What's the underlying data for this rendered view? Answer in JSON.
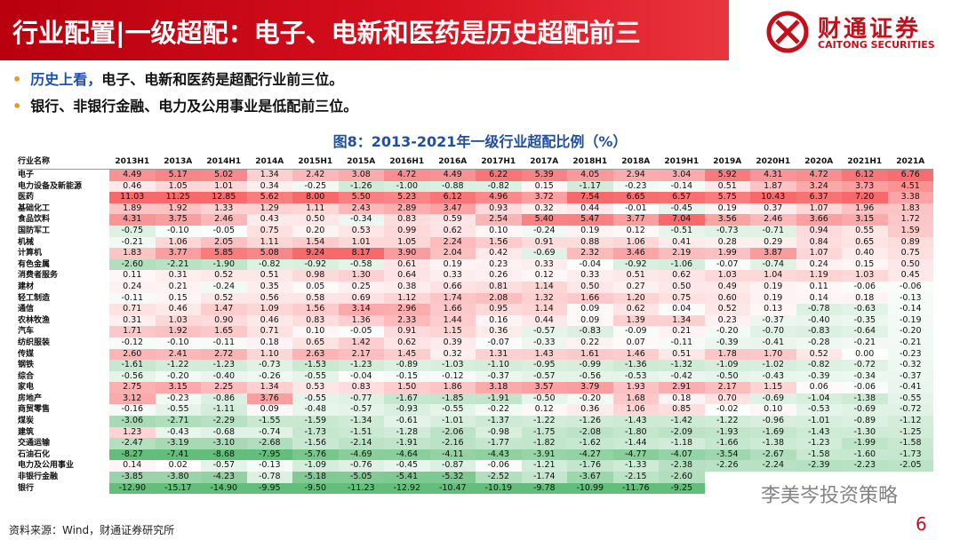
{
  "header": {
    "title": "行业配置|一级超配：电子、电新和医药是历史超配前三",
    "logo": "财通证券",
    "logo_en": "CAITONG SECURITIES"
  },
  "bullets": [
    {
      "lead": "历史上看，",
      "text": "电子、电新和医药是超配行业前三位。"
    },
    {
      "text": "银行、非银行金融、电力及公用事业是低配前三位。"
    }
  ],
  "figure_title": "图8：2013-2021年一级行业超配比例（%）",
  "table": {
    "columns": [
      "行业名称",
      "2013H1",
      "2013A",
      "2014H1",
      "2014A",
      "2015H1",
      "2015A",
      "2016H1",
      "2016A",
      "2017H1",
      "2017A",
      "2018H1",
      "2018A",
      "2019H1",
      "2019A",
      "2020H1",
      "2020A",
      "2021H1",
      "2021A"
    ],
    "rows": [
      [
        "电子",
        "4.49",
        "5.17",
        "5.02",
        "1.34",
        "2.42",
        "3.08",
        "4.72",
        "4.49",
        "6.22",
        "5.39",
        "4.05",
        "2.94",
        "3.04",
        "5.92",
        "4.31",
        "4.72",
        "6.12",
        "6.76"
      ],
      [
        "电力设备及新能源",
        "0.46",
        "1.05",
        "1.01",
        "0.34",
        "-0.25",
        "-1.26",
        "-1.00",
        "-0.88",
        "-0.82",
        "0.15",
        "-1.17",
        "-0.23",
        "-0.14",
        "0.51",
        "1.87",
        "3.24",
        "3.73",
        "4.51"
      ],
      [
        "医药",
        "11.03",
        "11.25",
        "12.85",
        "5.62",
        "8.00",
        "5.50",
        "5.23",
        "6.12",
        "4.96",
        "3.72",
        "7.54",
        "6.65",
        "6.57",
        "5.75",
        "10.43",
        "6.37",
        "7.20",
        "3.38"
      ],
      [
        "基础化工",
        "1.89",
        "1.92",
        "1.33",
        "1.29",
        "1.11",
        "2.43",
        "2.89",
        "3.47",
        "0.93",
        "0.32",
        "0.44",
        "-0.01",
        "-0.45",
        "0.19",
        "0.37",
        "1.07",
        "1.96",
        "1.83"
      ],
      [
        "食品饮料",
        "4.31",
        "3.75",
        "2.46",
        "0.43",
        "0.50",
        "-0.34",
        "0.83",
        "0.59",
        "2.54",
        "5.40",
        "5.47",
        "3.77",
        "7.04",
        "3.56",
        "2.46",
        "3.66",
        "3.15",
        "1.72"
      ],
      [
        "国防军工",
        "-0.75",
        "-0.10",
        "-0.05",
        "0.75",
        "0.20",
        "0.53",
        "0.99",
        "0.62",
        "0.10",
        "-0.24",
        "0.19",
        "0.12",
        "-0.51",
        "-0.73",
        "-0.71",
        "0.94",
        "0.55",
        "1.59"
      ],
      [
        "机械",
        "-0.21",
        "1.06",
        "2.05",
        "1.11",
        "1.54",
        "1.01",
        "1.05",
        "2.24",
        "1.56",
        "0.91",
        "0.88",
        "1.06",
        "0.41",
        "0.28",
        "0.29",
        "0.84",
        "0.65",
        "0.89"
      ],
      [
        "计算机",
        "1.83",
        "3.77",
        "5.85",
        "5.08",
        "9.24",
        "8.17",
        "3.90",
        "2.04",
        "0.42",
        "-0.69",
        "2.32",
        "3.46",
        "2.19",
        "1.99",
        "3.87",
        "1.07",
        "0.40",
        "0.75"
      ],
      [
        "有色金属",
        "-2.60",
        "-2.21",
        "-1.90",
        "-0.82",
        "-0.92",
        "-0.58",
        "0.61",
        "0.19",
        "0.23",
        "0.33",
        "-0.04",
        "-0.92",
        "-1.06",
        "-0.07",
        "-0.74",
        "0.24",
        "0.15",
        "0.50"
      ],
      [
        "消费者服务",
        "0.11",
        "0.31",
        "0.52",
        "0.51",
        "0.98",
        "1.30",
        "0.64",
        "0.33",
        "0.26",
        "0.12",
        "0.33",
        "0.51",
        "0.62",
        "1.03",
        "1.04",
        "1.19",
        "1.03",
        "0.45"
      ],
      [
        "建材",
        "0.24",
        "0.21",
        "-0.24",
        "0.35",
        "0.05",
        "0.25",
        "0.38",
        "0.66",
        "0.81",
        "1.14",
        "0.50",
        "0.27",
        "0.50",
        "0.49",
        "0.19",
        "0.11",
        "-0.06",
        "-0.06"
      ],
      [
        "轻工制造",
        "-0.11",
        "0.15",
        "0.52",
        "0.56",
        "0.58",
        "0.69",
        "1.12",
        "1.74",
        "2.08",
        "1.32",
        "1.66",
        "1.20",
        "0.75",
        "0.60",
        "0.19",
        "0.14",
        "0.18",
        "-0.13"
      ],
      [
        "通信",
        "0.71",
        "0.46",
        "1.47",
        "1.09",
        "1.56",
        "3.14",
        "2.96",
        "1.66",
        "0.95",
        "1.14",
        "0.09",
        "0.62",
        "0.04",
        "0.52",
        "0.13",
        "-0.78",
        "-0.63",
        "-0.14"
      ],
      [
        "农林牧渔",
        "0.31",
        "1.03",
        "0.90",
        "0.46",
        "0.83",
        "1.36",
        "2.33",
        "1.44",
        "0.16",
        "0.44",
        "0.09",
        "1.39",
        "1.34",
        "0.23",
        "-0.37",
        "-0.40",
        "-0.35",
        "-0.19"
      ],
      [
        "汽车",
        "1.71",
        "1.92",
        "1.65",
        "0.71",
        "0.10",
        "-0.05",
        "0.91",
        "1.15",
        "0.36",
        "-0.57",
        "-0.83",
        "-0.09",
        "0.21",
        "-0.20",
        "-0.70",
        "-0.83",
        "-0.64",
        "-0.20"
      ],
      [
        "纺织服装",
        "-0.12",
        "-0.10",
        "-0.11",
        "0.18",
        "0.65",
        "1.42",
        "0.62",
        "0.39",
        "-0.07",
        "-0.33",
        "0.22",
        "0.07",
        "-0.11",
        "-0.39",
        "-0.41",
        "-0.28",
        "-0.21",
        "-0.21"
      ],
      [
        "传媒",
        "2.60",
        "2.41",
        "2.72",
        "1.10",
        "2.63",
        "2.17",
        "1.45",
        "0.32",
        "1.31",
        "1.43",
        "1.61",
        "1.46",
        "0.51",
        "1.78",
        "1.70",
        "0.52",
        "0.00",
        "-0.23"
      ],
      [
        "钢铁",
        "-1.61",
        "-1.22",
        "-1.23",
        "-0.73",
        "-1.53",
        "-1.23",
        "-0.89",
        "-1.03",
        "-1.10",
        "-0.95",
        "-0.99",
        "-1.36",
        "-1.32",
        "-1.09",
        "-1.02",
        "-0.82",
        "-0.72",
        "-0.32"
      ],
      [
        "综合",
        "-0.56",
        "-0.20",
        "-0.40",
        "-0.26",
        "-0.55",
        "-0.04",
        "-0.15",
        "-0.12",
        "-0.37",
        "-0.57",
        "-0.56",
        "-0.53",
        "-0.42",
        "-0.50",
        "-0.43",
        "-0.39",
        "-0.34",
        "-0.37"
      ],
      [
        "家电",
        "2.75",
        "3.15",
        "2.25",
        "1.34",
        "0.53",
        "0.83",
        "1.50",
        "1.86",
        "3.18",
        "3.57",
        "3.79",
        "1.93",
        "2.91",
        "2.17",
        "1.15",
        "0.06",
        "-0.06",
        "-0.41"
      ],
      [
        "房地产",
        "3.12",
        "-0.23",
        "-0.86",
        "3.76",
        "-0.55",
        "-0.77",
        "-1.67",
        "-1.85",
        "-1.91",
        "-0.50",
        "-0.20",
        "1.68",
        "0.18",
        "0.70",
        "-0.69",
        "-1.04",
        "-1.38",
        "-0.55"
      ],
      [
        "商贸零售",
        "-0.16",
        "-0.55",
        "-1.11",
        "0.09",
        "-0.48",
        "-0.57",
        "-0.93",
        "-0.55",
        "-0.22",
        "0.12",
        "0.36",
        "1.06",
        "0.85",
        "-0.02",
        "0.10",
        "-0.53",
        "-0.69",
        "-0.72"
      ],
      [
        "煤炭",
        "-3.06",
        "-2.71",
        "-2.29",
        "-1.55",
        "-1.59",
        "-1.34",
        "-0.61",
        "-1.01",
        "-1.37",
        "-1.22",
        "-1.26",
        "-1.43",
        "-1.42",
        "-1.22",
        "-0.96",
        "-1.01",
        "-0.89",
        "-1.12"
      ],
      [
        "建筑",
        "1.23",
        "-0.43",
        "-0.68",
        "-0.74",
        "-1.73",
        "-1.51",
        "-1.28",
        "-2.06",
        "-0.98",
        "-1.75",
        "-2.08",
        "-1.80",
        "-2.09",
        "-1.93",
        "-1.69",
        "-1.43",
        "-1.30",
        "-1.25"
      ],
      [
        "交通运输",
        "-2.47",
        "-3.19",
        "-3.10",
        "-2.68",
        "-1.56",
        "-2.14",
        "-1.91",
        "-2.16",
        "-1.77",
        "-1.82",
        "-1.62",
        "-1.44",
        "-1.18",
        "-1.66",
        "-1.38",
        "-1.23",
        "-1.99",
        "-1.58"
      ],
      [
        "石油石化",
        "-8.27",
        "-7.41",
        "-8.68",
        "-7.95",
        "-5.76",
        "-4.69",
        "-4.64",
        "-4.11",
        "-4.43",
        "-3.91",
        "-4.27",
        "-4.77",
        "-4.07",
        "-3.54",
        "-2.67",
        "-1.58",
        "-1.60",
        "-1.73"
      ],
      [
        "电力及公用事业",
        "0.14",
        "0.02",
        "-0.57",
        "-0.13",
        "-1.09",
        "-0.76",
        "-0.45",
        "-0.87",
        "-0.06",
        "-1.21",
        "-1.76",
        "-1.33",
        "-2.38",
        "-2.26",
        "-2.24",
        "-2.39",
        "-2.23",
        "-2.05"
      ],
      [
        "非银行金融",
        "-3.85",
        "-3.80",
        "-4.23",
        "-0.78",
        "-5.18",
        "-5.05",
        "-5.41",
        "-5.32",
        "-2.52",
        "-1.74",
        "-3.67",
        "-2.15",
        "-2.60",
        null,
        null,
        null,
        null,
        null
      ],
      [
        "银行",
        "-12.90",
        "-15.17",
        "-14.90",
        "-9.95",
        "-9.50",
        "-11.23",
        "-12.92",
        "-10.47",
        "-10.19",
        "-9.78",
        "-10.99",
        "-11.76",
        "-9.25",
        null,
        null,
        null,
        null,
        null
      ]
    ]
  },
  "source": "资料来源：Wind，财通证券研究所",
  "watermark": "李美岑投资策略",
  "page_number": "6"
}
